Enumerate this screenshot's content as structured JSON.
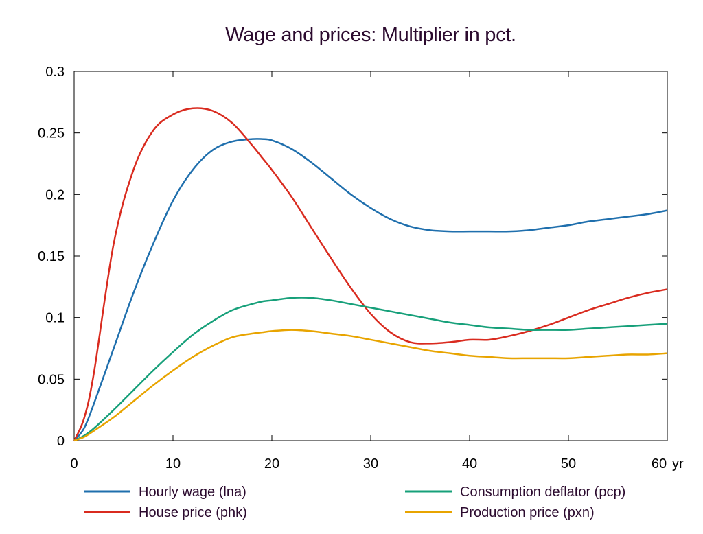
{
  "chart_data": {
    "type": "line",
    "title": "Wage and prices: Multiplier in pct.",
    "xlabel": "",
    "ylabel": "",
    "x_unit_label": "yr",
    "xlim": [
      0,
      60
    ],
    "ylim": [
      0,
      0.3
    ],
    "x_ticks": [
      "0",
      "10",
      "20",
      "30",
      "40",
      "50",
      "60"
    ],
    "y_ticks": [
      "0",
      "0.05",
      "0.1",
      "0.15",
      "0.2",
      "0.25",
      "0.3"
    ],
    "grid": false,
    "legend_position": "bottom",
    "x": [
      0,
      1,
      2,
      4,
      6,
      8,
      10,
      12,
      14,
      16,
      18,
      19,
      20,
      22,
      24,
      26,
      28,
      30,
      32,
      34,
      36,
      38,
      40,
      42,
      44,
      46,
      48,
      50,
      52,
      54,
      56,
      58,
      60
    ],
    "series": [
      {
        "name": "Hourly wage (lna)",
        "color": "#1f6fad",
        "values": [
          0,
          0.01,
          0.03,
          0.075,
          0.12,
          0.16,
          0.195,
          0.22,
          0.236,
          0.243,
          0.245,
          0.245,
          0.244,
          0.237,
          0.226,
          0.213,
          0.2,
          0.189,
          0.18,
          0.174,
          0.171,
          0.17,
          0.17,
          0.17,
          0.17,
          0.171,
          0.173,
          0.175,
          0.178,
          0.18,
          0.182,
          0.184,
          0.187
        ]
      },
      {
        "name": "House price (phk)",
        "color": "#d92b1f",
        "values": [
          0,
          0.018,
          0.055,
          0.16,
          0.22,
          0.252,
          0.265,
          0.27,
          0.268,
          0.258,
          0.24,
          0.23,
          0.22,
          0.198,
          0.173,
          0.148,
          0.124,
          0.103,
          0.088,
          0.08,
          0.079,
          0.08,
          0.082,
          0.082,
          0.085,
          0.089,
          0.094,
          0.1,
          0.106,
          0.111,
          0.116,
          0.12,
          0.123
        ]
      },
      {
        "name": "Consumption deflator (pcp)",
        "color": "#17a07a",
        "values": [
          0,
          0.004,
          0.01,
          0.025,
          0.041,
          0.057,
          0.072,
          0.086,
          0.097,
          0.106,
          0.111,
          0.113,
          0.114,
          0.116,
          0.116,
          0.114,
          0.111,
          0.108,
          0.105,
          0.102,
          0.099,
          0.096,
          0.094,
          0.092,
          0.091,
          0.09,
          0.09,
          0.09,
          0.091,
          0.092,
          0.093,
          0.094,
          0.095
        ]
      },
      {
        "name": "Production price (pxn)",
        "color": "#e8a400",
        "values": [
          0,
          0.003,
          0.008,
          0.019,
          0.032,
          0.045,
          0.057,
          0.068,
          0.077,
          0.084,
          0.087,
          0.088,
          0.089,
          0.09,
          0.089,
          0.087,
          0.085,
          0.082,
          0.079,
          0.076,
          0.073,
          0.071,
          0.069,
          0.068,
          0.067,
          0.067,
          0.067,
          0.067,
          0.068,
          0.069,
          0.07,
          0.07,
          0.071
        ]
      }
    ]
  }
}
